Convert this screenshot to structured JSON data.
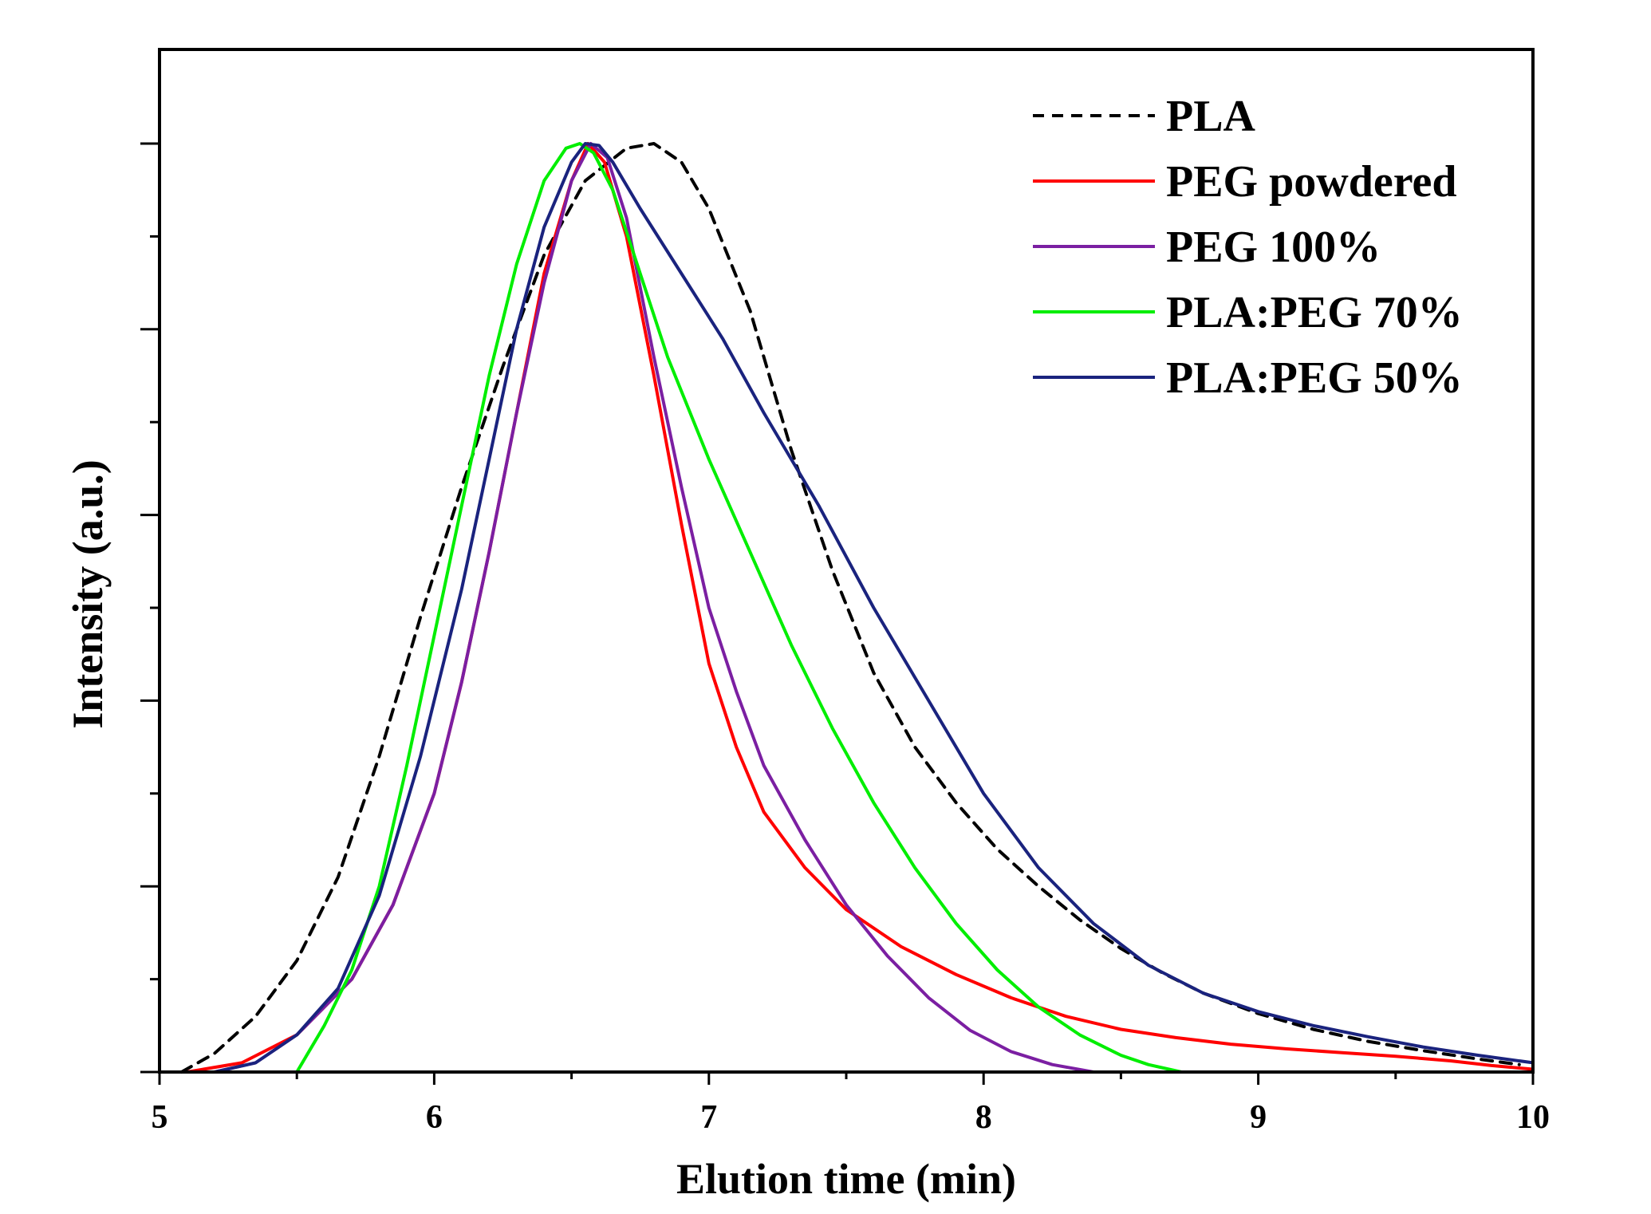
{
  "chart_data": {
    "type": "line",
    "title": "",
    "xlabel": "Elution time (min)",
    "ylabel": "Intensity (a.u.)",
    "xlim": [
      5,
      10
    ],
    "ylim": [
      0,
      1
    ],
    "x_ticks": [
      "5",
      "6",
      "7",
      "8",
      "9",
      "10"
    ],
    "x_tick_values": [
      5,
      6,
      7,
      8,
      9,
      10
    ],
    "y_tick_labels_shown": false,
    "grid": false,
    "legend_position": "top-right",
    "series": [
      {
        "name": "PLA",
        "color": "#000000",
        "dash": true,
        "x": [
          5.08,
          5.2,
          5.35,
          5.5,
          5.65,
          5.8,
          5.95,
          6.1,
          6.25,
          6.4,
          6.55,
          6.7,
          6.8,
          6.9,
          7.0,
          7.15,
          7.3,
          7.45,
          7.6,
          7.75,
          7.9,
          8.05,
          8.2,
          8.35,
          8.5,
          8.65,
          8.8,
          9.0,
          9.2,
          9.4,
          9.6,
          9.8,
          9.95
        ],
        "y": [
          0.0,
          0.02,
          0.06,
          0.12,
          0.21,
          0.34,
          0.49,
          0.63,
          0.76,
          0.88,
          0.96,
          0.995,
          1.0,
          0.98,
          0.93,
          0.82,
          0.67,
          0.54,
          0.43,
          0.35,
          0.29,
          0.24,
          0.2,
          0.164,
          0.133,
          0.107,
          0.085,
          0.063,
          0.046,
          0.033,
          0.023,
          0.014,
          0.008
        ]
      },
      {
        "name": "PEG powdered",
        "color": "#ff0000",
        "dash": false,
        "x": [
          5.1,
          5.3,
          5.5,
          5.7,
          5.85,
          6.0,
          6.1,
          6.2,
          6.3,
          6.4,
          6.5,
          6.56,
          6.62,
          6.7,
          6.8,
          6.9,
          7.0,
          7.1,
          7.2,
          7.35,
          7.5,
          7.7,
          7.9,
          8.1,
          8.3,
          8.5,
          8.7,
          8.9,
          9.1,
          9.3,
          9.5,
          9.7,
          9.85,
          10.0
        ],
        "y": [
          0.0,
          0.01,
          0.04,
          0.1,
          0.18,
          0.3,
          0.42,
          0.56,
          0.71,
          0.86,
          0.96,
          1.0,
          0.98,
          0.9,
          0.75,
          0.59,
          0.44,
          0.35,
          0.28,
          0.22,
          0.175,
          0.135,
          0.105,
          0.08,
          0.06,
          0.046,
          0.037,
          0.03,
          0.025,
          0.021,
          0.017,
          0.012,
          0.007,
          0.003
        ]
      },
      {
        "name": "PEG 100%",
        "color": "#7b1fa2",
        "dash": false,
        "x": [
          5.2,
          5.35,
          5.5,
          5.7,
          5.85,
          6.0,
          6.1,
          6.2,
          6.3,
          6.4,
          6.5,
          6.57,
          6.63,
          6.7,
          6.8,
          6.9,
          7.0,
          7.1,
          7.2,
          7.35,
          7.5,
          7.65,
          7.8,
          7.95,
          8.1,
          8.25,
          8.4
        ],
        "y": [
          0.0,
          0.01,
          0.04,
          0.1,
          0.18,
          0.3,
          0.42,
          0.56,
          0.71,
          0.85,
          0.96,
          1.0,
          0.985,
          0.92,
          0.77,
          0.63,
          0.5,
          0.41,
          0.33,
          0.25,
          0.18,
          0.125,
          0.08,
          0.045,
          0.022,
          0.008,
          0.0
        ]
      },
      {
        "name": "PLA:PEG 70%",
        "color": "#00ee00",
        "dash": false,
        "x": [
          5.5,
          5.6,
          5.7,
          5.8,
          5.9,
          6.0,
          6.1,
          6.2,
          6.3,
          6.4,
          6.48,
          6.53,
          6.58,
          6.65,
          6.75,
          6.85,
          7.0,
          7.15,
          7.3,
          7.45,
          7.6,
          7.75,
          7.9,
          8.05,
          8.2,
          8.35,
          8.5,
          8.6,
          8.72
        ],
        "y": [
          0.0,
          0.05,
          0.11,
          0.2,
          0.33,
          0.47,
          0.61,
          0.75,
          0.87,
          0.96,
          0.995,
          1.0,
          0.99,
          0.95,
          0.86,
          0.77,
          0.66,
          0.56,
          0.46,
          0.37,
          0.29,
          0.22,
          0.16,
          0.11,
          0.07,
          0.04,
          0.018,
          0.008,
          0.0
        ]
      },
      {
        "name": "PLA:PEG 50%",
        "color": "#1a237e",
        "dash": false,
        "x": [
          5.2,
          5.35,
          5.5,
          5.65,
          5.8,
          5.95,
          6.1,
          6.2,
          6.3,
          6.4,
          6.5,
          6.55,
          6.6,
          6.65,
          6.75,
          6.9,
          7.05,
          7.2,
          7.4,
          7.6,
          7.8,
          8.0,
          8.2,
          8.4,
          8.6,
          8.8,
          9.0,
          9.2,
          9.4,
          9.6,
          9.8,
          10.0
        ],
        "y": [
          0.0,
          0.01,
          0.04,
          0.09,
          0.19,
          0.34,
          0.52,
          0.66,
          0.8,
          0.91,
          0.98,
          1.0,
          0.998,
          0.98,
          0.93,
          0.86,
          0.79,
          0.71,
          0.61,
          0.5,
          0.4,
          0.3,
          0.22,
          0.16,
          0.115,
          0.085,
          0.065,
          0.05,
          0.038,
          0.027,
          0.018,
          0.01
        ]
      }
    ]
  }
}
